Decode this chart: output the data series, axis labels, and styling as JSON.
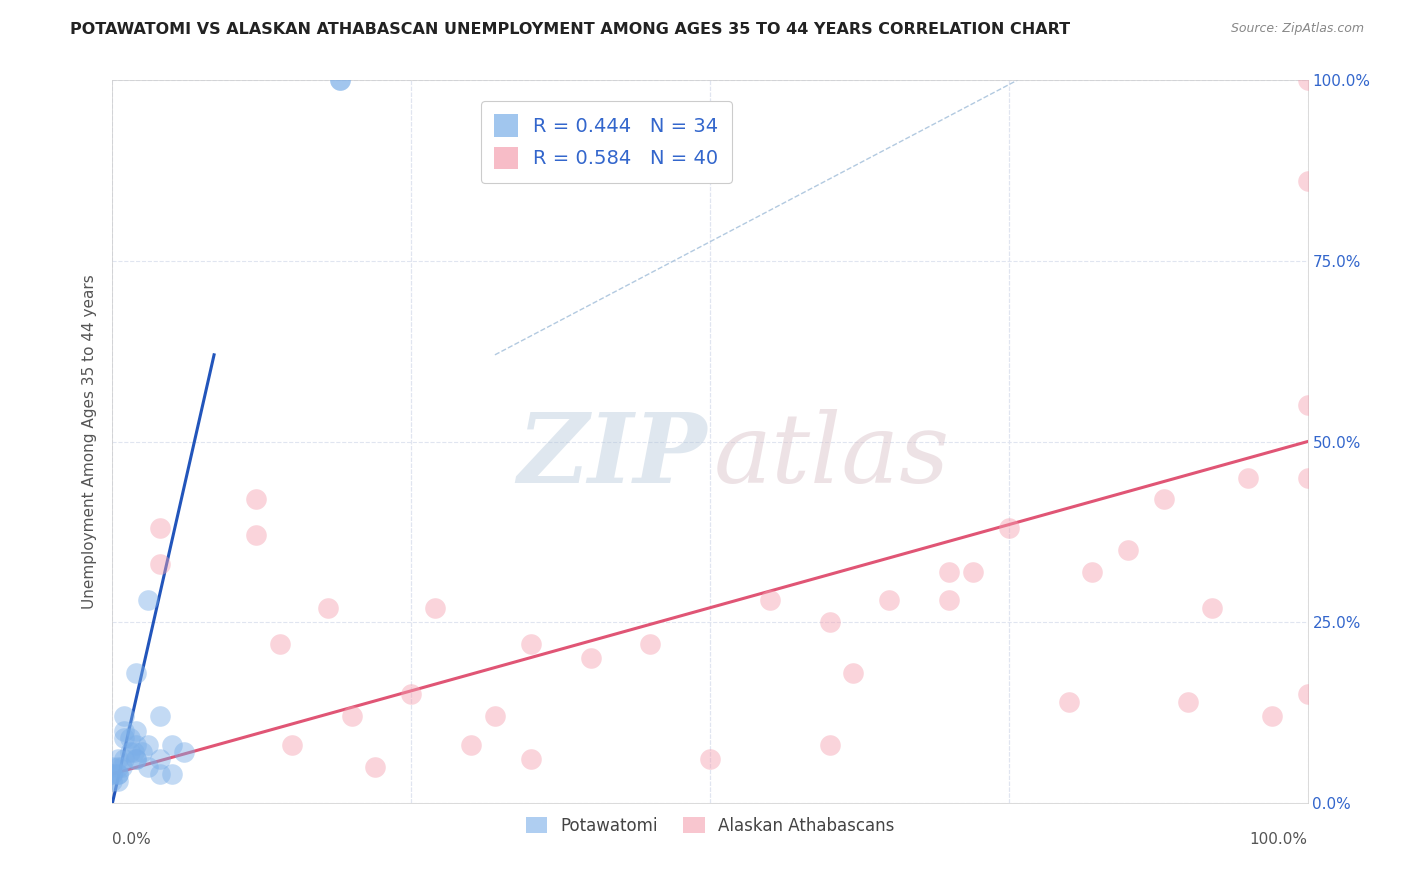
{
  "title": "POTAWATOMI VS ALASKAN ATHABASCAN UNEMPLOYMENT AMONG AGES 35 TO 44 YEARS CORRELATION CHART",
  "source": "Source: ZipAtlas.com",
  "ylabel": "Unemployment Among Ages 35 to 44 years",
  "xlim": [
    0,
    1.0
  ],
  "ylim": [
    0,
    1.0
  ],
  "background_color": "#ffffff",
  "potawatomi_x": [
    0.005,
    0.005,
    0.005,
    0.005,
    0.005,
    0.008,
    0.01,
    0.01,
    0.01,
    0.01,
    0.015,
    0.015,
    0.018,
    0.02,
    0.02,
    0.02,
    0.02,
    0.02,
    0.025,
    0.03,
    0.03,
    0.03,
    0.04,
    0.04,
    0.04,
    0.05,
    0.05,
    0.06,
    0.0,
    0.0,
    0.0,
    0.0,
    0.19,
    0.19
  ],
  "potawatomi_y": [
    0.06,
    0.05,
    0.04,
    0.04,
    0.03,
    0.05,
    0.12,
    0.1,
    0.09,
    0.06,
    0.09,
    0.07,
    0.07,
    0.18,
    0.1,
    0.08,
    0.06,
    0.06,
    0.07,
    0.28,
    0.08,
    0.05,
    0.12,
    0.06,
    0.04,
    0.08,
    0.04,
    0.07,
    0.05,
    0.04,
    0.04,
    0.03,
    1.0,
    1.0
  ],
  "athabascan_x": [
    0.04,
    0.04,
    0.12,
    0.12,
    0.14,
    0.15,
    0.18,
    0.2,
    0.22,
    0.25,
    0.27,
    0.3,
    0.32,
    0.35,
    0.35,
    0.4,
    0.45,
    0.5,
    0.55,
    0.6,
    0.6,
    0.62,
    0.65,
    0.7,
    0.7,
    0.72,
    0.75,
    0.8,
    0.82,
    0.85,
    0.88,
    0.9,
    0.92,
    0.95,
    0.97,
    1.0,
    1.0,
    1.0,
    1.0,
    1.0
  ],
  "athabascan_y": [
    0.38,
    0.33,
    0.42,
    0.37,
    0.22,
    0.08,
    0.27,
    0.12,
    0.05,
    0.15,
    0.27,
    0.08,
    0.12,
    0.06,
    0.22,
    0.2,
    0.22,
    0.06,
    0.28,
    0.25,
    0.08,
    0.18,
    0.28,
    0.28,
    0.32,
    0.32,
    0.38,
    0.14,
    0.32,
    0.35,
    0.42,
    0.14,
    0.27,
    0.45,
    0.12,
    0.86,
    0.45,
    1.0,
    0.55,
    0.15
  ],
  "blue_line_x": [
    0.0,
    0.085
  ],
  "blue_line_y": [
    0.0,
    0.62
  ],
  "pink_line_x": [
    0.0,
    1.0
  ],
  "pink_line_y": [
    0.04,
    0.5
  ],
  "diag_line_x": [
    0.32,
    0.78
  ],
  "diag_line_y": [
    0.62,
    1.02
  ],
  "blue_color": "#7aaee8",
  "pink_color": "#f4a0b0",
  "blue_line_color": "#2255bb",
  "pink_line_color": "#e05575",
  "diag_line_color": "#aac4dd",
  "grid_color": "#e0e5f0",
  "title_color": "#222222",
  "source_color": "#888888",
  "watermark_color_zip": "#b0c4d8",
  "watermark_color_atlas": "#d4b8c0",
  "right_label_color": "#3366cc",
  "legend_R_color": "#3366cc"
}
